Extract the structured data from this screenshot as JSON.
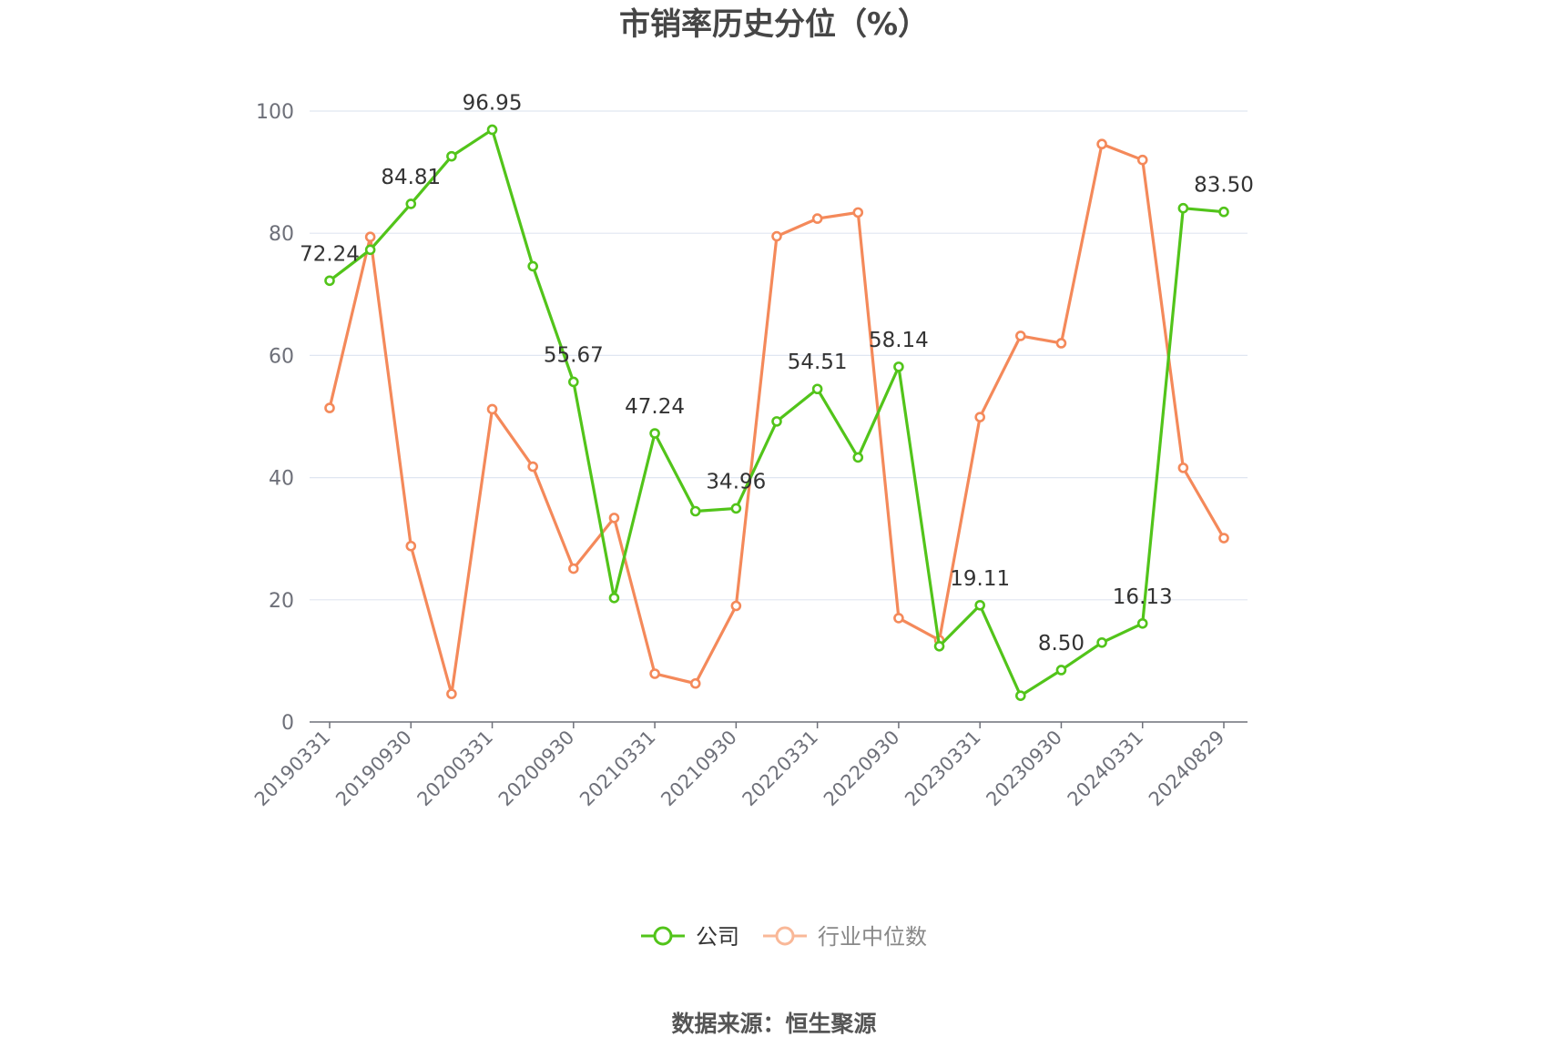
{
  "chart_data": {
    "type": "line",
    "title": "市销率历史分位（%）",
    "source": "数据来源：恒生聚源",
    "ylim": [
      0,
      100
    ],
    "y_ticks": [
      "0",
      "20",
      "40",
      "60",
      "80",
      "100"
    ],
    "grid": true,
    "legend_placement": "bottom",
    "x_tick_labels": [
      "20190331",
      "20190930",
      "20200331",
      "20200930",
      "20210331",
      "20210930",
      "20220331",
      "20220930",
      "20230331",
      "20230930",
      "20240331",
      "20240829"
    ],
    "series": [
      {
        "name": "公司",
        "color": "#52c41a",
        "values": [
          72.24,
          77.3,
          84.81,
          92.6,
          96.95,
          74.6,
          55.67,
          20.3,
          47.24,
          34.5,
          34.96,
          49.2,
          54.51,
          43.3,
          58.14,
          12.4,
          19.11,
          4.3,
          8.5,
          13.0,
          16.13,
          84.1,
          83.5
        ],
        "labels": [
          "72.24",
          "",
          "84.81",
          "",
          "96.95",
          "",
          "55.67",
          "",
          "47.24",
          "",
          "34.96",
          "",
          "54.51",
          "",
          "58.14",
          "",
          "19.11",
          "",
          "8.50",
          "",
          "16.13",
          "",
          "83.50"
        ]
      },
      {
        "name": "行业中位数",
        "color": "#f4895a",
        "values": [
          51.4,
          79.4,
          28.8,
          4.6,
          51.2,
          41.8,
          25.1,
          33.4,
          7.9,
          6.3,
          19.0,
          79.5,
          82.4,
          83.4,
          17.0,
          13.4,
          49.9,
          63.2,
          62.0,
          94.6,
          92.0,
          41.6,
          30.1
        ]
      }
    ]
  }
}
